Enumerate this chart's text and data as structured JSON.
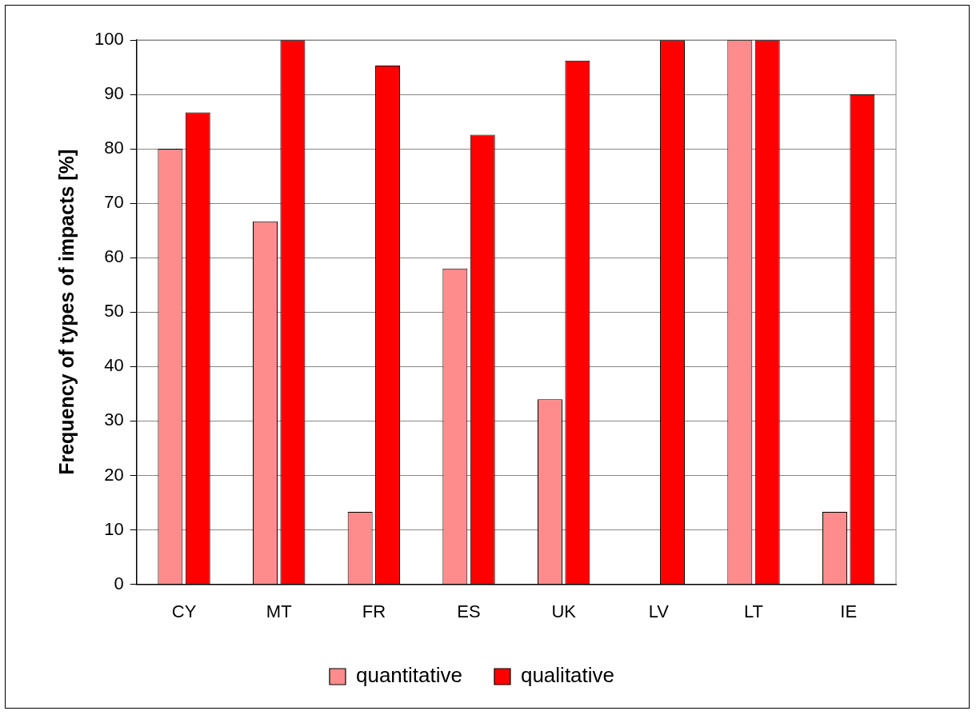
{
  "chart_data": {
    "type": "bar",
    "ylabel": "Frequency of types of impacts [%]",
    "categories": [
      "CY",
      "MT",
      "FR",
      "ES",
      "UK",
      "LV",
      "LT",
      "IE"
    ],
    "series": [
      {
        "name": "quantitative",
        "color": "#ff8c8c",
        "values": [
          80,
          66.7,
          13.3,
          58,
          34,
          0,
          100,
          13.3
        ]
      },
      {
        "name": "qualitative",
        "color": "#ff0000",
        "values": [
          86.7,
          100,
          95.3,
          82.6,
          96.2,
          100,
          100,
          90
        ]
      }
    ],
    "ylim": [
      0,
      100
    ],
    "yticks": [
      0,
      10,
      20,
      30,
      40,
      50,
      60,
      70,
      80,
      90,
      100
    ],
    "grid": "y",
    "legend": "bottom"
  }
}
